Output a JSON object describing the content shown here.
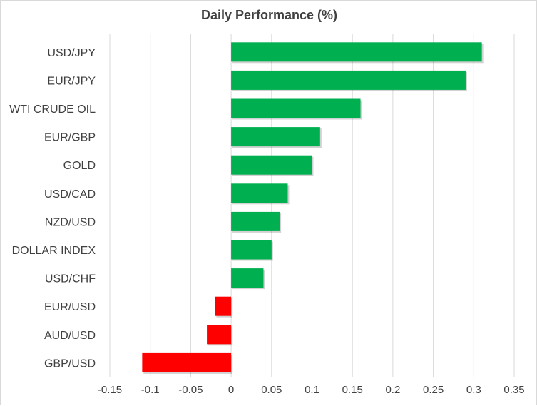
{
  "chart_data": {
    "type": "bar",
    "orientation": "horizontal",
    "title": "Daily Performance (%)",
    "categories": [
      "USD/JPY",
      "EUR/JPY",
      "WTI CRUDE OIL",
      "EUR/GBP",
      "GOLD",
      "USD/CAD",
      "NZD/USD",
      "DOLLAR INDEX",
      "USD/CHF",
      "EUR/USD",
      "AUD/USD",
      "GBP/USD"
    ],
    "values": [
      0.31,
      0.29,
      0.16,
      0.11,
      0.1,
      0.07,
      0.06,
      0.05,
      0.04,
      -0.02,
      -0.03,
      -0.11
    ],
    "xlim": [
      -0.15,
      0.35
    ],
    "xticks": [
      -0.15,
      -0.1,
      -0.05,
      0,
      0.05,
      0.1,
      0.15,
      0.2,
      0.25,
      0.3,
      0.35
    ],
    "xtick_labels": [
      "-0.15",
      "-0.1",
      "-0.05",
      "0",
      "0.05",
      "0.1",
      "0.15",
      "0.2",
      "0.25",
      "0.3",
      "0.35"
    ],
    "grid": true,
    "xlabel": "",
    "ylabel": "",
    "colors": {
      "positive": "#00b050",
      "negative": "#ff0000",
      "grid": "#d9d9d9",
      "text": "#404040"
    }
  }
}
